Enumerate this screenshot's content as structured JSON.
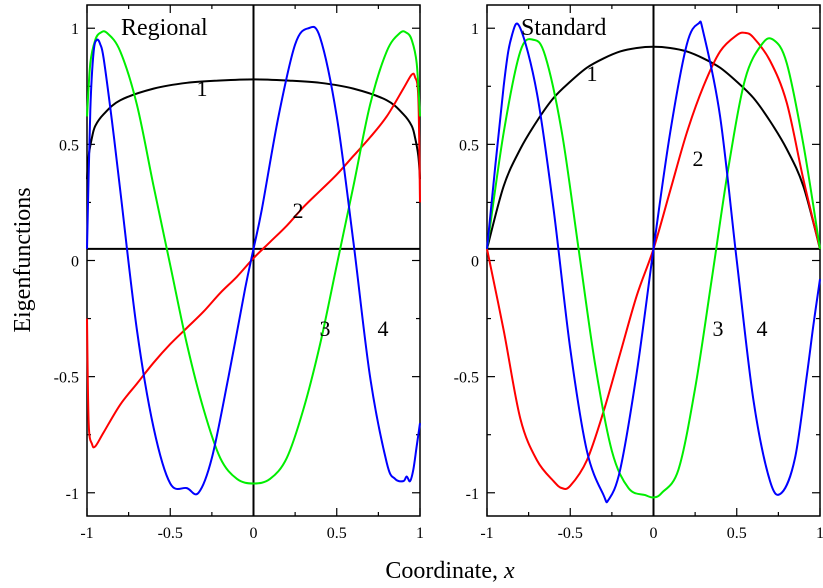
{
  "figure": {
    "ylabel": "Eigenfunctions",
    "xlabel_text": "Coordinate, ",
    "xlabel_var": "x"
  },
  "chart_data": [
    {
      "type": "line",
      "title": "Regional",
      "xlim": [
        -1,
        1
      ],
      "ylim": [
        -1.1,
        1.1
      ],
      "x_ticks": [
        -1,
        -0.5,
        0,
        0.5,
        1
      ],
      "x_tick_labels": [
        "-1",
        "-0.5",
        "0",
        "0.5",
        "1"
      ],
      "y_ticks": [
        1,
        0.5,
        0,
        -0.5,
        -1
      ],
      "y_tick_labels": [
        "1",
        "0.5",
        "0",
        "-0.5",
        "-1"
      ],
      "zero_line_y": 0.05,
      "grid": false,
      "series": [
        {
          "label": "1",
          "color": "#000000",
          "x": [
            -1,
            -0.99,
            -0.97,
            -0.95,
            -0.9,
            -0.8,
            -0.6,
            -0.4,
            -0.2,
            0,
            0.2,
            0.4,
            0.6,
            0.8,
            0.9,
            0.95,
            0.97,
            0.99,
            1
          ],
          "y": [
            0.35,
            0.45,
            0.53,
            0.58,
            0.63,
            0.69,
            0.74,
            0.765,
            0.775,
            0.78,
            0.775,
            0.765,
            0.74,
            0.69,
            0.63,
            0.58,
            0.53,
            0.45,
            0.35
          ]
        },
        {
          "label": "2",
          "color": "#ff0000",
          "x": [
            -1,
            -0.99,
            -0.97,
            -0.95,
            -0.9,
            -0.8,
            -0.7,
            -0.6,
            -0.5,
            -0.4,
            -0.3,
            -0.2,
            -0.1,
            0,
            0.1,
            0.2,
            0.3,
            0.4,
            0.5,
            0.6,
            0.7,
            0.8,
            0.9,
            0.95,
            0.97,
            0.99,
            1
          ],
          "y": [
            -0.25,
            -0.7,
            -0.79,
            -0.8,
            -0.74,
            -0.62,
            -0.53,
            -0.44,
            -0.36,
            -0.29,
            -0.22,
            -0.14,
            -0.07,
            0.01,
            0.08,
            0.15,
            0.23,
            0.3,
            0.37,
            0.45,
            0.53,
            0.62,
            0.74,
            0.8,
            0.79,
            0.7,
            0.25
          ]
        },
        {
          "label": "3",
          "color": "#00ee00",
          "x": [
            -1,
            -0.98,
            -0.95,
            -0.92,
            -0.88,
            -0.8,
            -0.7,
            -0.6,
            -0.5,
            -0.4,
            -0.3,
            -0.2,
            -0.1,
            0,
            0.1,
            0.2,
            0.3,
            0.4,
            0.5,
            0.6,
            0.7,
            0.8,
            0.88,
            0.92,
            0.95,
            0.98,
            1
          ],
          "y": [
            0.62,
            0.85,
            0.95,
            0.98,
            0.98,
            0.9,
            0.67,
            0.32,
            -0.02,
            -0.36,
            -0.64,
            -0.85,
            -0.94,
            -0.96,
            -0.94,
            -0.85,
            -0.64,
            -0.36,
            -0.02,
            0.32,
            0.67,
            0.9,
            0.98,
            0.98,
            0.95,
            0.85,
            0.62
          ]
        },
        {
          "label": "4",
          "color": "#0000ff",
          "x": [
            -1,
            -0.98,
            -0.96,
            -0.94,
            -0.92,
            -0.9,
            -0.85,
            -0.8,
            -0.7,
            -0.6,
            -0.5,
            -0.4,
            -0.33,
            -0.25,
            -0.15,
            -0.05,
            0,
            0.05,
            0.15,
            0.25,
            0.33,
            0.4,
            0.5,
            0.6,
            0.7,
            0.8,
            0.85,
            0.9,
            0.92,
            0.94,
            0.96,
            0.98,
            1
          ],
          "y": [
            0.05,
            0.65,
            0.9,
            0.95,
            0.93,
            0.87,
            0.6,
            0.3,
            -0.3,
            -0.72,
            -0.96,
            -0.98,
            -1.0,
            -0.85,
            -0.5,
            -0.12,
            0.05,
            0.22,
            0.62,
            0.93,
            1.0,
            0.96,
            0.62,
            0.08,
            -0.5,
            -0.87,
            -0.94,
            -0.95,
            -0.93,
            -0.95,
            -0.9,
            -0.8,
            -0.7
          ]
        }
      ]
    },
    {
      "type": "line",
      "title": "Standard",
      "xlim": [
        -1,
        1
      ],
      "ylim": [
        -1.1,
        1.1
      ],
      "x_ticks": [
        -1,
        -0.5,
        0,
        0.5,
        1
      ],
      "x_tick_labels": [
        "-1",
        "-0.5",
        "0",
        "0.5",
        "1"
      ],
      "y_ticks": [
        1,
        0.5,
        0,
        -0.5,
        -1
      ],
      "y_tick_labels": [
        "1",
        "0.5",
        "0",
        "-0.5",
        "-1"
      ],
      "zero_line_y": 0.05,
      "grid": false,
      "series": [
        {
          "label": "1",
          "color": "#000000",
          "x": [
            -1,
            -0.9,
            -0.8,
            -0.7,
            -0.6,
            -0.5,
            -0.4,
            -0.3,
            -0.2,
            -0.1,
            0,
            0.1,
            0.2,
            0.3,
            0.4,
            0.5,
            0.6,
            0.7,
            0.8,
            0.9,
            1
          ],
          "y": [
            0.05,
            0.32,
            0.48,
            0.6,
            0.7,
            0.77,
            0.83,
            0.87,
            0.9,
            0.915,
            0.92,
            0.915,
            0.9,
            0.87,
            0.83,
            0.77,
            0.7,
            0.6,
            0.48,
            0.32,
            0.05
          ]
        },
        {
          "label": "2",
          "color": "#ff0000",
          "x": [
            -1,
            -0.9,
            -0.8,
            -0.7,
            -0.6,
            -0.55,
            -0.5,
            -0.4,
            -0.3,
            -0.2,
            -0.1,
            0,
            0.1,
            0.2,
            0.3,
            0.4,
            0.5,
            0.55,
            0.6,
            0.7,
            0.8,
            0.9,
            1
          ],
          "y": [
            0.05,
            -0.3,
            -0.68,
            -0.86,
            -0.95,
            -0.98,
            -0.97,
            -0.86,
            -0.65,
            -0.4,
            -0.15,
            0.05,
            0.3,
            0.55,
            0.75,
            0.9,
            0.97,
            0.98,
            0.96,
            0.86,
            0.68,
            0.35,
            0.05
          ]
        },
        {
          "label": "3",
          "color": "#00ee00",
          "x": [
            -1,
            -0.9,
            -0.8,
            -0.72,
            -0.65,
            -0.55,
            -0.45,
            -0.35,
            -0.25,
            -0.15,
            -0.05,
            0,
            0.05,
            0.15,
            0.25,
            0.35,
            0.45,
            0.55,
            0.65,
            0.72,
            0.8,
            0.9,
            1
          ],
          "y": [
            0.05,
            0.55,
            0.9,
            0.95,
            0.88,
            0.55,
            0.05,
            -0.45,
            -0.82,
            -0.98,
            -1.01,
            -1.02,
            -1.0,
            -0.9,
            -0.55,
            -0.08,
            0.4,
            0.78,
            0.93,
            0.95,
            0.85,
            0.5,
            0.05
          ]
        },
        {
          "label": "4",
          "color": "#0000ff",
          "x": [
            -1,
            -0.9,
            -0.85,
            -0.8,
            -0.7,
            -0.6,
            -0.5,
            -0.4,
            -0.3,
            -0.27,
            -0.2,
            -0.1,
            0,
            0.1,
            0.2,
            0.27,
            0.3,
            0.4,
            0.5,
            0.6,
            0.7,
            0.77,
            0.85,
            0.92,
            0.96,
            1
          ],
          "y": [
            0.05,
            0.75,
            0.97,
            1.0,
            0.72,
            0.22,
            -0.38,
            -0.82,
            -1.01,
            -1.03,
            -0.9,
            -0.48,
            0.05,
            0.55,
            0.93,
            1.02,
            0.98,
            0.62,
            0.0,
            -0.6,
            -0.95,
            -1.0,
            -0.85,
            -0.5,
            -0.28,
            -0.08
          ]
        }
      ]
    }
  ]
}
